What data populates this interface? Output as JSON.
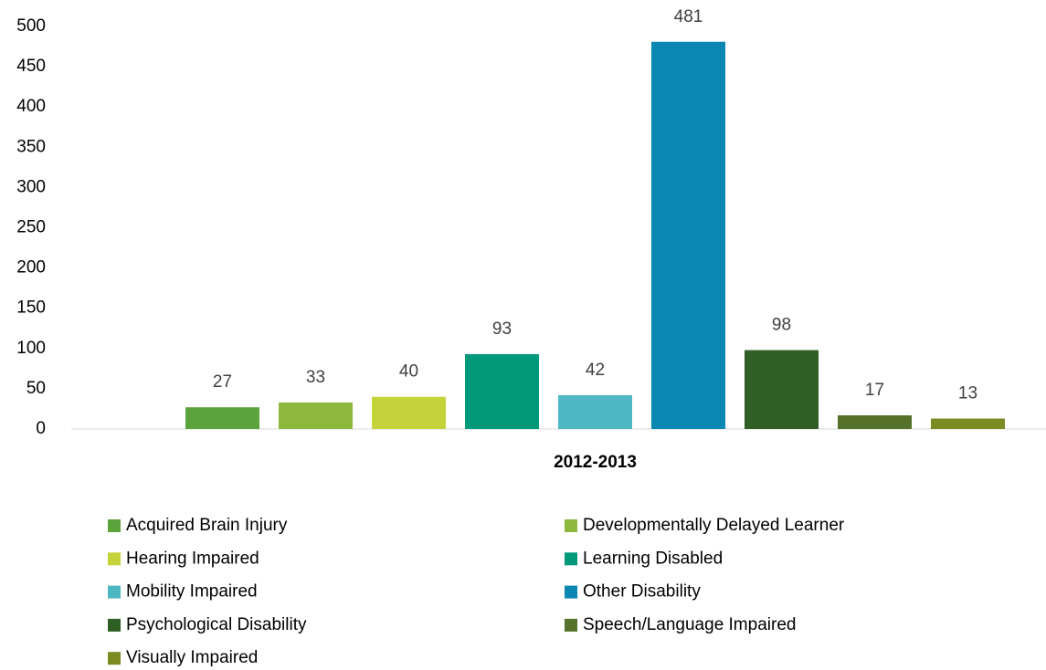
{
  "chart_data": {
    "type": "bar",
    "categories": [
      "2012-2013"
    ],
    "series": [
      {
        "name": "Acquired Brain Injury",
        "color": "#5ba33b",
        "values": [
          27
        ]
      },
      {
        "name": "Developmentally Delayed Learner",
        "color": "#8cb83c",
        "values": [
          33
        ]
      },
      {
        "name": "Hearing Impaired",
        "color": "#c5d33b",
        "values": [
          40
        ]
      },
      {
        "name": "Learning Disabled",
        "color": "#00997a",
        "values": [
          93
        ]
      },
      {
        "name": "Mobility Impaired",
        "color": "#4db8c4",
        "values": [
          42
        ]
      },
      {
        "name": "Other Disability",
        "color": "#0b87b3",
        "values": [
          481
        ]
      },
      {
        "name": "Psychological Disability",
        "color": "#2f5f24",
        "values": [
          98
        ]
      },
      {
        "name": "Speech/Language Impaired",
        "color": "#56712a",
        "values": [
          17
        ]
      },
      {
        "name": "Visually Impaired",
        "color": "#7c8a22",
        "values": [
          13
        ]
      }
    ],
    "ylim": [
      0,
      500
    ],
    "yticks": [
      0,
      50,
      100,
      150,
      200,
      250,
      300,
      350,
      400,
      450,
      500
    ],
    "grid": false,
    "legend": "bottom"
  }
}
